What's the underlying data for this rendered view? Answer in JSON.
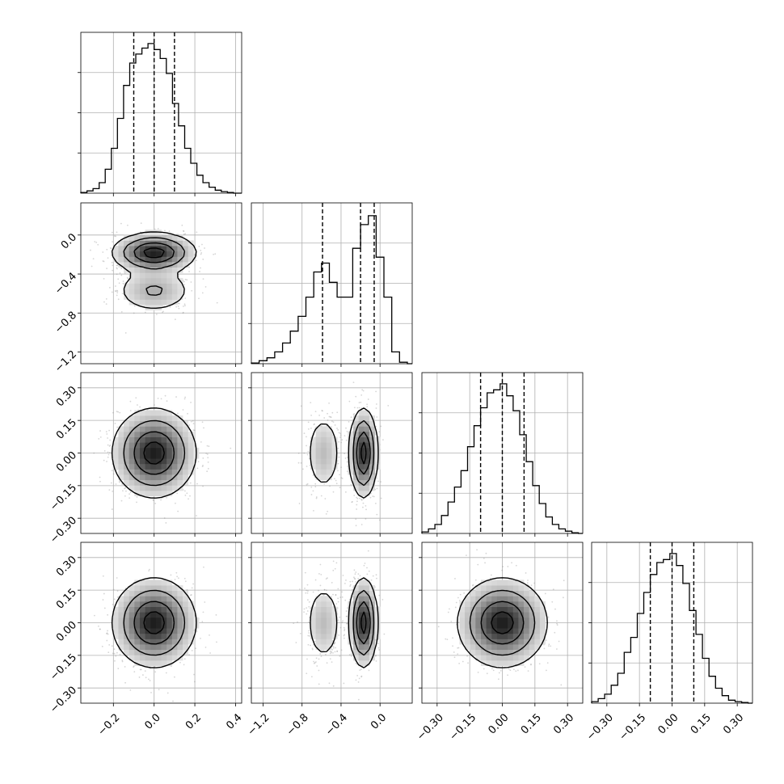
{
  "chart_data": {
    "type": "corner",
    "grid": true,
    "parameters": [
      {
        "ticks": [
          -0.2,
          0.0,
          0.2,
          0.4
        ],
        "tick_labels": [
          "−0.2",
          "0.0",
          "0.2",
          "0.4"
        ],
        "range": [
          -0.36,
          0.43
        ]
      },
      {
        "ticks": [
          -1.2,
          -0.8,
          -0.4,
          0.0
        ],
        "tick_labels": [
          "−1.2",
          "−0.8",
          "−0.4",
          "0.0"
        ],
        "range": [
          -1.32,
          0.33
        ]
      },
      {
        "ticks": [
          -0.3,
          -0.15,
          0.0,
          0.15,
          0.3
        ],
        "tick_labels": [
          "−0.30",
          "−0.15",
          "0.00",
          "0.15",
          "0.30"
        ],
        "range": [
          -0.37,
          0.37
        ]
      },
      {
        "ticks": [
          -0.3,
          -0.15,
          0.0,
          0.15,
          0.3
        ],
        "tick_labels": [
          "−0.30",
          "−0.15",
          "0.00",
          "0.15",
          "0.30"
        ],
        "range": [
          -0.37,
          0.37
        ]
      }
    ],
    "histograms": [
      {
        "quantiles": [
          -0.1,
          0.0,
          0.1
        ],
        "bins": [
          [
            -0.36,
            0.005
          ],
          [
            -0.33,
            0.015
          ],
          [
            -0.3,
            0.03
          ],
          [
            -0.27,
            0.07
          ],
          [
            -0.24,
            0.16
          ],
          [
            -0.21,
            0.3
          ],
          [
            -0.18,
            0.5
          ],
          [
            -0.15,
            0.72
          ],
          [
            -0.12,
            0.87
          ],
          [
            -0.09,
            0.93
          ],
          [
            -0.06,
            0.97
          ],
          [
            -0.03,
            1.0
          ],
          [
            0.0,
            0.96
          ],
          [
            0.03,
            0.9
          ],
          [
            0.06,
            0.8
          ],
          [
            0.09,
            0.6
          ],
          [
            0.12,
            0.45
          ],
          [
            0.15,
            0.3
          ],
          [
            0.18,
            0.2
          ],
          [
            0.21,
            0.12
          ],
          [
            0.24,
            0.07
          ],
          [
            0.27,
            0.04
          ],
          [
            0.3,
            0.02
          ],
          [
            0.33,
            0.01
          ],
          [
            0.36,
            0.005
          ],
          [
            0.39,
            0.0
          ]
        ],
        "range_max": 0.93
      },
      {
        "quantiles": [
          -0.59,
          -0.2,
          -0.06
        ],
        "bins": [
          [
            -1.32,
            0.005
          ],
          [
            -1.24,
            0.02
          ],
          [
            -1.16,
            0.04
          ],
          [
            -1.08,
            0.08
          ],
          [
            -1.0,
            0.14
          ],
          [
            -0.92,
            0.22
          ],
          [
            -0.84,
            0.32
          ],
          [
            -0.76,
            0.45
          ],
          [
            -0.68,
            0.62
          ],
          [
            -0.6,
            0.68
          ],
          [
            -0.52,
            0.55
          ],
          [
            -0.44,
            0.45
          ],
          [
            -0.36,
            0.45
          ],
          [
            -0.28,
            0.78
          ],
          [
            -0.2,
            0.94
          ],
          [
            -0.12,
            1.0
          ],
          [
            -0.04,
            0.72
          ],
          [
            0.04,
            0.45
          ],
          [
            0.12,
            0.08
          ],
          [
            0.2,
            0.01
          ],
          [
            0.28,
            0.0
          ]
        ],
        "range_max": 0.92
      },
      {
        "quantiles": [
          -0.1,
          0.0,
          0.1
        ],
        "bins": [
          [
            -0.37,
            0.01
          ],
          [
            -0.34,
            0.03
          ],
          [
            -0.31,
            0.06
          ],
          [
            -0.28,
            0.12
          ],
          [
            -0.25,
            0.21
          ],
          [
            -0.22,
            0.31
          ],
          [
            -0.19,
            0.42
          ],
          [
            -0.16,
            0.58
          ],
          [
            -0.13,
            0.72
          ],
          [
            -0.1,
            0.84
          ],
          [
            -0.07,
            0.94
          ],
          [
            -0.04,
            0.96
          ],
          [
            -0.01,
            1.0
          ],
          [
            0.02,
            0.92
          ],
          [
            0.05,
            0.82
          ],
          [
            0.08,
            0.66
          ],
          [
            0.11,
            0.48
          ],
          [
            0.14,
            0.32
          ],
          [
            0.17,
            0.2
          ],
          [
            0.2,
            0.11
          ],
          [
            0.23,
            0.06
          ],
          [
            0.26,
            0.03
          ],
          [
            0.29,
            0.015
          ],
          [
            0.32,
            0.005
          ],
          [
            0.35,
            0.0
          ]
        ],
        "range_max": 0.93
      },
      {
        "quantiles": [
          -0.1,
          0.0,
          0.1
        ],
        "bins": [
          [
            -0.37,
            0.01
          ],
          [
            -0.34,
            0.03
          ],
          [
            -0.31,
            0.06
          ],
          [
            -0.28,
            0.12
          ],
          [
            -0.25,
            0.2
          ],
          [
            -0.22,
            0.34
          ],
          [
            -0.19,
            0.44
          ],
          [
            -0.16,
            0.6
          ],
          [
            -0.13,
            0.74
          ],
          [
            -0.1,
            0.86
          ],
          [
            -0.07,
            0.94
          ],
          [
            -0.04,
            0.96
          ],
          [
            -0.01,
            1.0
          ],
          [
            0.02,
            0.92
          ],
          [
            0.05,
            0.8
          ],
          [
            0.08,
            0.62
          ],
          [
            0.11,
            0.46
          ],
          [
            0.14,
            0.3
          ],
          [
            0.17,
            0.18
          ],
          [
            0.2,
            0.1
          ],
          [
            0.23,
            0.05
          ],
          [
            0.26,
            0.02
          ],
          [
            0.29,
            0.01
          ],
          [
            0.32,
            0.005
          ],
          [
            0.35,
            0.0
          ]
        ],
        "range_max": 0.93
      }
    ],
    "joint_modes": [
      {
        "i": 1,
        "j": 0,
        "components": [
          {
            "mean": [
              0.0,
              -0.18
            ],
            "sd": [
              0.1,
              0.1
            ],
            "w": 0.7
          },
          {
            "mean": [
              0.0,
              -0.57
            ],
            "sd": [
              0.1,
              0.12
            ],
            "w": 0.3
          }
        ]
      },
      {
        "i": 2,
        "j": 0,
        "components": [
          {
            "mean": [
              0.0,
              0.0
            ],
            "sd": [
              0.1,
              0.1
            ],
            "w": 1.0
          }
        ]
      },
      {
        "i": 2,
        "j": 1,
        "components": [
          {
            "mean": [
              -0.17,
              0.0
            ],
            "sd": [
              0.07,
              0.1
            ],
            "w": 0.7
          },
          {
            "mean": [
              -0.58,
              0.0
            ],
            "sd": [
              0.1,
              0.1
            ],
            "w": 0.3
          }
        ]
      },
      {
        "i": 3,
        "j": 0,
        "components": [
          {
            "mean": [
              0.0,
              0.0
            ],
            "sd": [
              0.1,
              0.1
            ],
            "w": 1.0
          }
        ]
      },
      {
        "i": 3,
        "j": 1,
        "components": [
          {
            "mean": [
              -0.17,
              0.0
            ],
            "sd": [
              0.07,
              0.1
            ],
            "w": 0.7
          },
          {
            "mean": [
              -0.58,
              0.0
            ],
            "sd": [
              0.1,
              0.1
            ],
            "w": 0.3
          }
        ]
      },
      {
        "i": 3,
        "j": 2,
        "components": [
          {
            "mean": [
              0.0,
              0.0
            ],
            "sd": [
              0.1,
              0.1
            ],
            "w": 1.0
          }
        ]
      }
    ]
  }
}
